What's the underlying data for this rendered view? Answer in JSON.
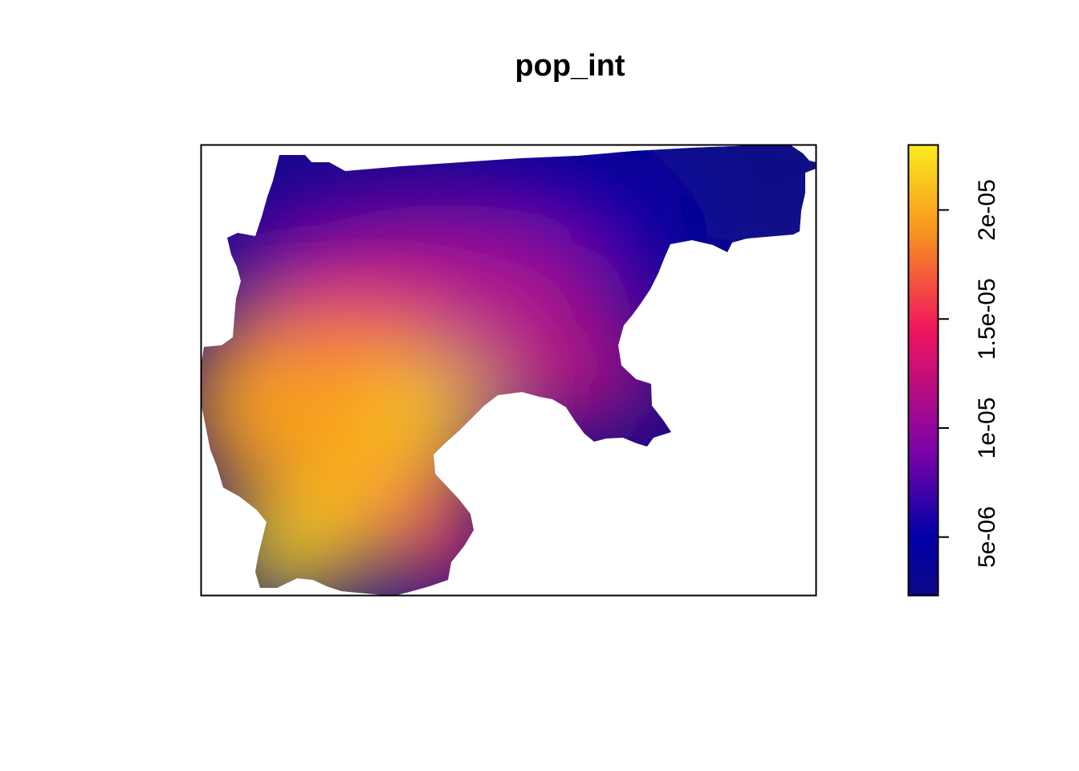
{
  "chart_data": {
    "type": "heatmap",
    "title": "pop_int",
    "xlabel": "",
    "ylabel": "",
    "color_scale": {
      "name": "plasma",
      "min": 2.3e-06,
      "max": 2.3e-05,
      "stops": [
        "#0d0887",
        "#0000a8",
        "#7e03a8",
        "#f0155e",
        "#f7941d",
        "#fceb1f"
      ],
      "stop_values": [
        2.3e-06,
        5e-06,
        9e-06,
        1.45e-05,
        1.9e-05,
        2.3e-05
      ],
      "ticks": [
        {
          "value": 5e-06,
          "label": "5e-06"
        },
        {
          "value": 1e-05,
          "label": "1e-05"
        },
        {
          "value": 1.5e-05,
          "label": "1.5e-05"
        },
        {
          "value": 2e-05,
          "label": "2e-05"
        }
      ]
    },
    "hotspots": [
      {
        "value": 2.2e-05
      },
      {
        "value": 2.1e-05
      },
      {
        "value": 2.3e-05
      },
      {
        "value": 1.9e-05
      }
    ],
    "background_value": 2.3e-06,
    "axes_visible": false,
    "legend_placement": "right"
  }
}
